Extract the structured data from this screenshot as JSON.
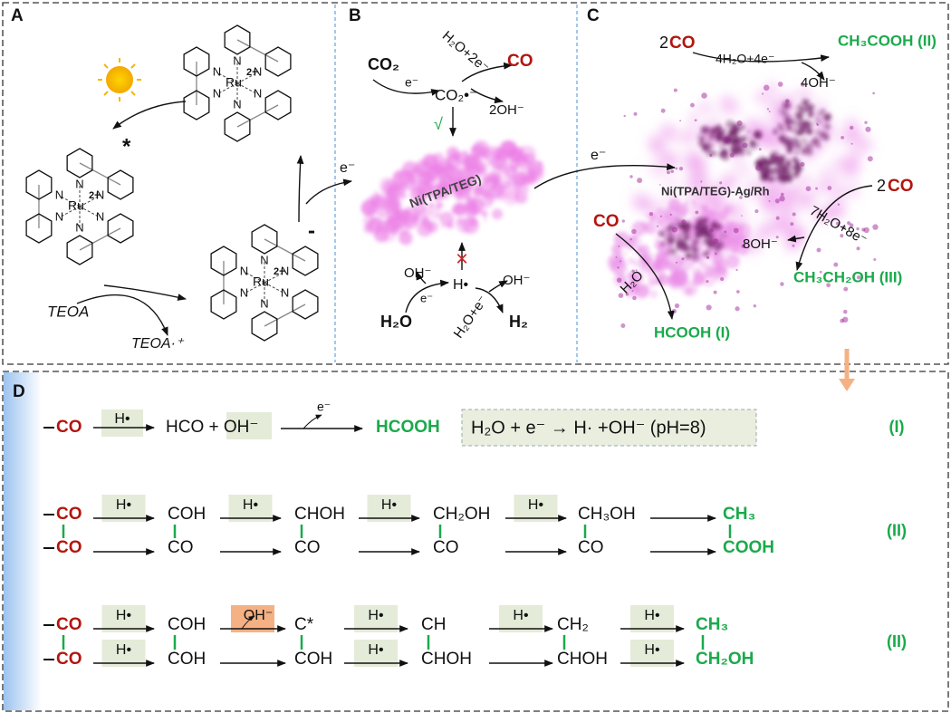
{
  "panel_a": {
    "label": "A",
    "complexes": [
      {
        "metal": "Ru",
        "charge": "2+",
        "atoms": [
          "N",
          "N",
          "N",
          "N",
          "N",
          "N"
        ]
      },
      {
        "metal": "Ru",
        "charge": "2+",
        "atoms": [
          "N",
          "N",
          "N",
          "N",
          "N",
          "N"
        ]
      },
      {
        "metal": "Ru",
        "charge": "2+",
        "atoms": [
          "N",
          "N",
          "N",
          "N",
          "N",
          "N"
        ]
      }
    ],
    "excited_mark": "*",
    "donor": "TEOA",
    "donor_oxidized": "TEOA·⁺",
    "electron": "e⁻",
    "charge_sign": "-"
  },
  "panel_b": {
    "label": "B",
    "reactant": "CO₂",
    "electron_1": "e⁻",
    "radical": "CO₂•⁻",
    "reagent": "H₂O+2e⁻",
    "product": "CO",
    "byproduct": "2OH⁻",
    "check": "√",
    "catalyst": "Ni(TPA/TEG)",
    "electron_out": "e⁻",
    "hydroxide_left": "OH⁻",
    "electron_2": "e⁻",
    "water": "H₂O",
    "hydrogen_radical": "H•",
    "blocked": "×",
    "hydroxide_right": "OH⁻",
    "reagent_2": "H₂O+e⁻",
    "hydrogen": "H₂"
  },
  "panel_c": {
    "label": "C",
    "top_coefficient": "2",
    "top_species": "CO",
    "top_reagent": "4H₂O+4e⁻",
    "top_byproduct": "4OH⁻",
    "top_product": "CH₃COOH (II)",
    "catalyst": "Ni(TPA/TEG)-Ag/Rh",
    "right_coefficient": "2",
    "right_species": "CO",
    "right_reagent": "7H₂O+8e⁻",
    "right_byproduct": "8OH⁻",
    "right_product": "CH₃CH₂OH (III)",
    "left_species": "CO",
    "left_reagent": "H₂O",
    "left_product": "HCOOH (I)"
  },
  "panel_d": {
    "label": "D",
    "row_1": {
      "start": "CO",
      "reagent": "H•",
      "intermediate": "HCO + OH⁻",
      "reagent_2": "e⁻",
      "product": "HCOOH",
      "note": "H₂O + e⁻ → H· +OH⁻ (pH=8)",
      "tag": "(I)"
    },
    "row_2": {
      "top": [
        "CO",
        "COH",
        "CHOH",
        "CH₂OH",
        "CH₃OH",
        "CH₃"
      ],
      "bottom": [
        "CO",
        "CO",
        "CO",
        "CO",
        "CO",
        "COOH"
      ],
      "top_reagents": [
        "H•",
        "H•",
        "H•",
        "H•",
        null
      ],
      "tag": "(II)"
    },
    "row_3": {
      "top": [
        "CO",
        "COH",
        "C*",
        "CH",
        "CH₂",
        "CH₃"
      ],
      "bottom": [
        "CO",
        "COH",
        "COH",
        "CHOH",
        "CHOH",
        "CH₂OH"
      ],
      "top_reagents": [
        "H•",
        "OH⁻",
        "H•",
        "H•",
        "H•"
      ],
      "bottom_reagents": [
        "H•",
        null,
        "H•",
        null,
        "H•"
      ],
      "tag": "(II)"
    }
  }
}
